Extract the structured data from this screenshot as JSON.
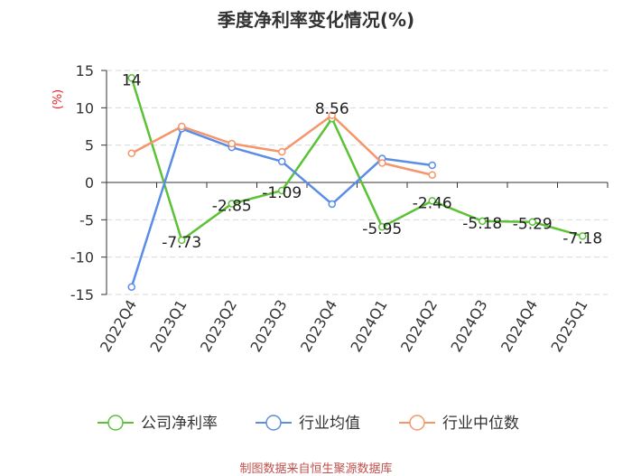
{
  "title": "季度净利率变化情况(%)",
  "footer": "制图数据来自恒生聚源数据库",
  "chart_data": {
    "type": "line",
    "title": "季度净利率变化情况(%)",
    "ylabel": "(%)",
    "ylim": [
      -15,
      15
    ],
    "yticks": [
      15,
      10,
      5,
      0,
      -5,
      -10,
      -15
    ],
    "grid": true,
    "legend_position": "bottom",
    "categories": [
      "2022Q4",
      "2023Q1",
      "2023Q2",
      "2023Q3",
      "2023Q4",
      "2024Q1",
      "2024Q2",
      "2024Q3",
      "2024Q4",
      "2025Q1"
    ],
    "series": [
      {
        "name": "公司净利率",
        "color": "#5bc236",
        "values": [
          14,
          -7.73,
          -2.85,
          -1.09,
          8.56,
          -5.95,
          -2.46,
          -5.18,
          -5.29,
          -7.18
        ],
        "labels": [
          "14",
          "-7.73",
          "-2.85",
          "-1.09",
          "8.56",
          "-5.95",
          "-2.46",
          "-5.18",
          "-5.29",
          "-7.18"
        ]
      },
      {
        "name": "行业均值",
        "color": "#5b8ce6",
        "values": [
          -14,
          7.2,
          4.7,
          2.8,
          -2.9,
          3.2,
          2.3,
          null,
          null,
          null
        ]
      },
      {
        "name": "行业中位数",
        "color": "#f5956b",
        "values": [
          3.9,
          7.5,
          5.2,
          4.1,
          9.0,
          2.6,
          1.0,
          null,
          null,
          null
        ]
      }
    ]
  }
}
